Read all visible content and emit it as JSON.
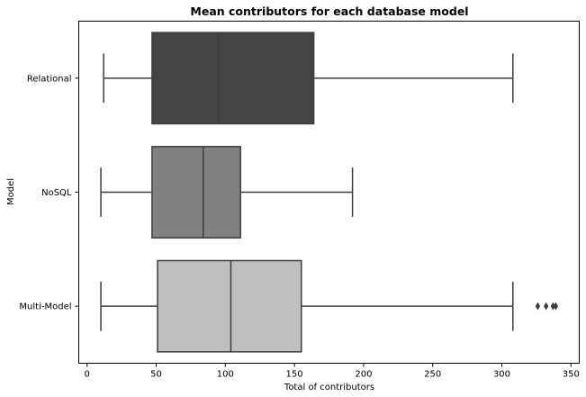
{
  "chart_data": {
    "type": "boxplot",
    "orientation": "horizontal",
    "title": "Mean contributors for each database model",
    "xlabel": "Total of contributors",
    "ylabel": "Model",
    "xlim": [
      -6,
      356
    ],
    "xticks": [
      0,
      50,
      100,
      150,
      200,
      250,
      300,
      350
    ],
    "categories": [
      "Relational",
      "NoSQL",
      "Multi-Model"
    ],
    "boxes": [
      {
        "category": "Relational",
        "whisker_low": 12,
        "q1": 47,
        "median": 95,
        "q3": 164,
        "whisker_high": 308,
        "outliers": [],
        "color": "#444444"
      },
      {
        "category": "NoSQL",
        "whisker_low": 10,
        "q1": 47,
        "median": 84,
        "q3": 111,
        "whisker_high": 192,
        "outliers": [],
        "color": "#818181"
      },
      {
        "category": "Multi-Model",
        "whisker_low": 10,
        "q1": 51,
        "median": 104,
        "q3": 155,
        "whisker_high": 308,
        "outliers": [
          326,
          332,
          337,
          339
        ],
        "color": "#bfbfbf"
      }
    ],
    "grid": false,
    "legend": "none"
  }
}
